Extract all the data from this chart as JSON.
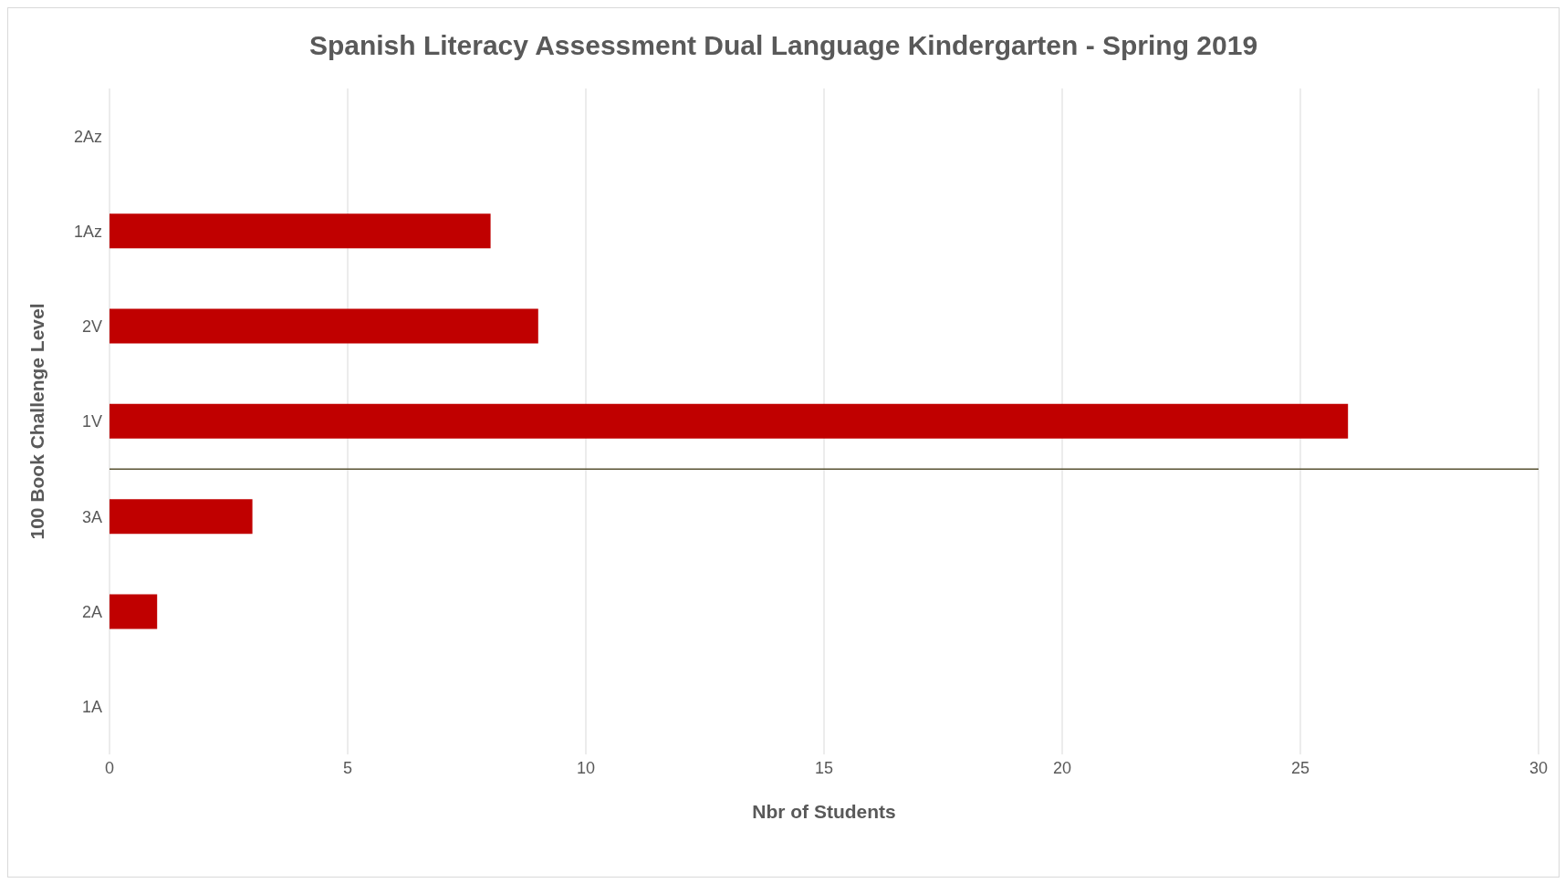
{
  "chart_data": {
    "type": "bar",
    "orientation": "horizontal",
    "title": "Spanish Literacy Assessment Dual Language Kindergarten - Spring 2019",
    "xlabel": "Nbr of Students",
    "ylabel": "100 Book Challenge Level",
    "categories": [
      "2Az",
      "1Az",
      "2V",
      "1V",
      "3A",
      "2A",
      "1A"
    ],
    "values": [
      0,
      8,
      9,
      26,
      3,
      1,
      0
    ],
    "color": "#c00000",
    "xlim": [
      0,
      30
    ],
    "xticks": [
      0,
      5,
      10,
      15,
      20,
      25,
      30
    ],
    "grid": "x",
    "ref_lines": [
      {
        "axis": "y",
        "value": "1V",
        "color": "#595232"
      }
    ]
  }
}
